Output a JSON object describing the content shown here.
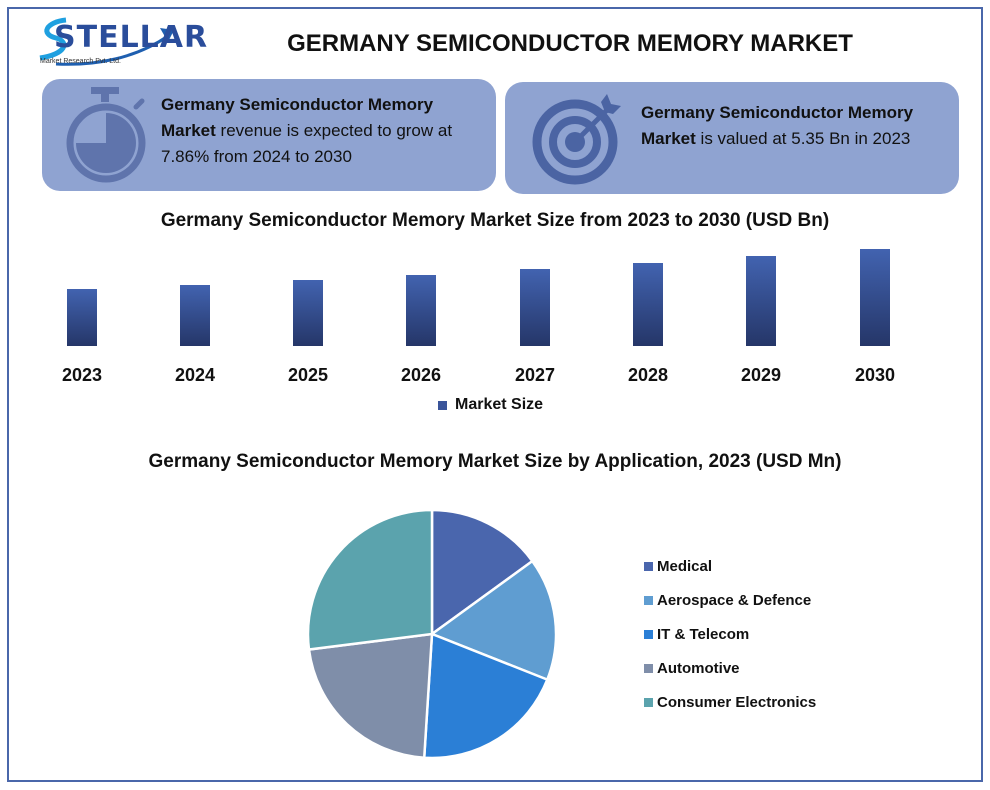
{
  "header": {
    "logo_text": "STELLAR",
    "logo_subtitle": "Market Research Pvt. Ltd.",
    "title": "GERMANY SEMICONDUCTOR MEMORY MARKET"
  },
  "cards": [
    {
      "icon": "stopwatch-icon",
      "bold_text": "Germany Semiconductor Memory Market",
      "text": " revenue is expected to grow at 7.86% from 2024 to 2030"
    },
    {
      "icon": "target-icon",
      "bold_text": "Germany Semiconductor Memory Market",
      "text": " is valued at 5.35 Bn in 2023"
    }
  ],
  "colors": {
    "frame": "#4a67aa",
    "card_bg": "#8fa3d1",
    "icon": "#4b64a3",
    "bar_top": "#4263b0",
    "bar_bottom": "#253668"
  },
  "chart_data": [
    {
      "type": "bar",
      "title": "Germany Semiconductor Memory Market Size from 2023 to 2030 (USD Bn)",
      "categories": [
        "2023",
        "2024",
        "2025",
        "2026",
        "2027",
        "2028",
        "2029",
        "2030"
      ],
      "series": [
        {
          "name": "Market Size",
          "values": [
            5.35,
            5.77,
            6.22,
            6.71,
            7.24,
            7.81,
            8.42,
            9.08
          ]
        }
      ],
      "xlabel": "",
      "ylabel": "",
      "grid": false,
      "legend_position": "bottom"
    },
    {
      "type": "pie",
      "title": "Germany Semiconductor Memory Market Size by Application, 2023 (USD Mn)",
      "categories": [
        "Medical",
        "Aerospace & Defence",
        "IT & Telecom",
        "Automotive",
        "Consumer Electronics"
      ],
      "values": [
        15,
        16,
        20,
        22,
        27
      ],
      "colors": [
        "#4a66ad",
        "#5f9dd1",
        "#2b7fd6",
        "#7f8ea9",
        "#5ba3ad"
      ],
      "legend_position": "right"
    }
  ]
}
